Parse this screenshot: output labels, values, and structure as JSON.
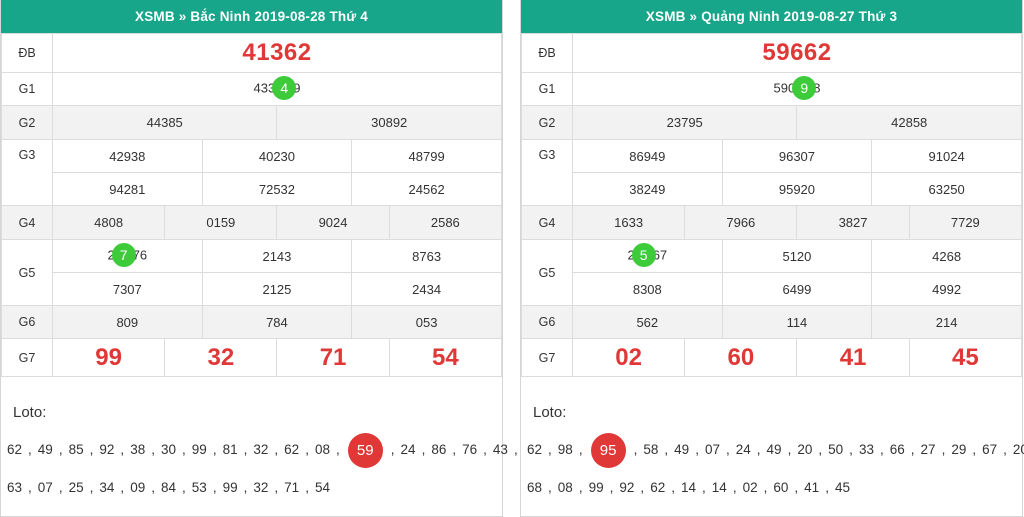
{
  "left": {
    "title": "XSMB » Bắc Ninh  2019-08-28  Thứ 4",
    "labels": {
      "db": "ĐB",
      "g1": "G1",
      "g2": "G2",
      "g3": "G3",
      "g4": "G4",
      "g5": "G5",
      "g6": "G6",
      "g7": "G7"
    },
    "db": "41362",
    "g1": {
      "before": "433",
      "ball": "4",
      "after": "9"
    },
    "g2": [
      "44385",
      "30892"
    ],
    "g3": [
      "42938",
      "40230",
      "48799",
      "94281",
      "72532",
      "24562"
    ],
    "g4": [
      "4808",
      "0159",
      "9024",
      "2586"
    ],
    "g5_first": {
      "before": "2",
      "ball": "7",
      "after": "76"
    },
    "g5": [
      "2143",
      "8763",
      "7307",
      "2125",
      "2434"
    ],
    "g6": [
      "809",
      "784",
      "053"
    ],
    "g7": [
      "99",
      "32",
      "71",
      "54"
    ],
    "loto_title": "Loto:",
    "loto_line1_a": [
      "62",
      "49",
      "85",
      "92",
      "38",
      "30",
      "99",
      "81",
      "32",
      "62",
      "08"
    ],
    "loto_highlight": "59",
    "loto_line1_b": [
      "24",
      "86",
      "76",
      "43"
    ],
    "loto_line2": [
      "63",
      "07",
      "25",
      "34",
      "09",
      "84",
      "53",
      "99",
      "32",
      "71",
      "54"
    ]
  },
  "right": {
    "title": "XSMB » Quảng Ninh  2019-08-27  Thứ 3",
    "labels": {
      "db": "ĐB",
      "g1": "G1",
      "g2": "G2",
      "g3": "G3",
      "g4": "G4",
      "g5": "G5",
      "g6": "G6",
      "g7": "G7"
    },
    "db": "59662",
    "g1": {
      "before": "590",
      "ball": "9",
      "after": "8"
    },
    "g2": [
      "23795",
      "42858"
    ],
    "g3": [
      "86949",
      "96307",
      "91024",
      "38249",
      "95920",
      "63250"
    ],
    "g4": [
      "1633",
      "7966",
      "3827",
      "7729"
    ],
    "g5_first": {
      "before": "2",
      "ball": "5",
      "after": "67"
    },
    "g5": [
      "5120",
      "4268",
      "8308",
      "6499",
      "4992"
    ],
    "g6": [
      "562",
      "114",
      "214"
    ],
    "g7": [
      "02",
      "60",
      "41",
      "45"
    ],
    "loto_title": "Loto:",
    "loto_line1_a": [
      "62",
      "98"
    ],
    "loto_highlight": "95",
    "loto_line1_b": [
      "58",
      "49",
      "07",
      "24",
      "49",
      "20",
      "50",
      "33",
      "66",
      "27",
      "29",
      "67",
      "20"
    ],
    "loto_line2": [
      "68",
      "08",
      "99",
      "92",
      "62",
      "14",
      "14",
      "02",
      "60",
      "41",
      "45"
    ]
  },
  "colors": {
    "header_bg": "#17a689",
    "highlight_red": "#e03737",
    "ball_green": "#3ecb3a"
  }
}
